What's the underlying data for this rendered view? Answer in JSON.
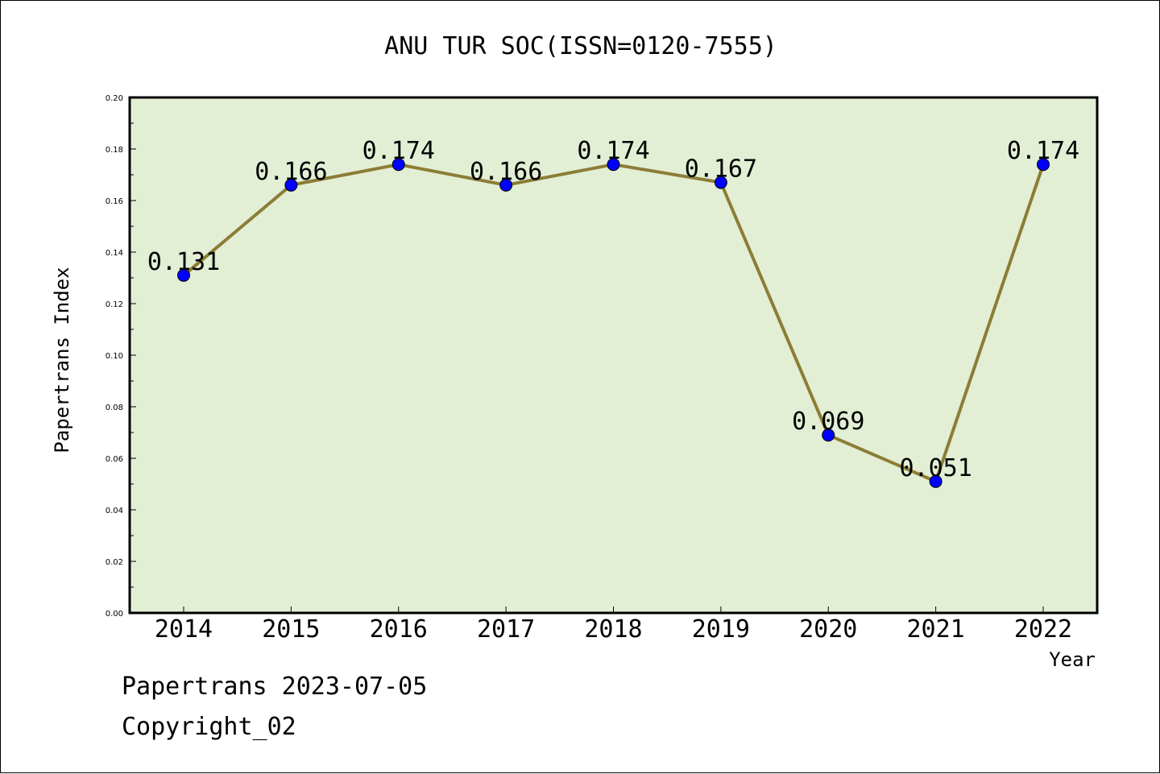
{
  "chart_data": {
    "type": "line",
    "title": "ANU TUR SOC(ISSN=0120-7555)",
    "xlabel": "Year",
    "ylabel": "Papertrans Index",
    "categories": [
      "2014",
      "2015",
      "2016",
      "2017",
      "2018",
      "2019",
      "2020",
      "2021",
      "2022"
    ],
    "values": [
      0.131,
      0.166,
      0.174,
      0.166,
      0.174,
      0.167,
      0.069,
      0.051,
      0.174
    ],
    "data_labels": [
      "0.131",
      "0.166",
      "0.174",
      "0.166",
      "0.174",
      "0.167",
      "0.069",
      "0.051",
      "0.174"
    ],
    "ylim": [
      0,
      0.2
    ],
    "yticks": [
      "0.00",
      "0.02",
      "0.04",
      "0.06",
      "0.08",
      "0.10",
      "0.12",
      "0.14",
      "0.16",
      "0.18",
      "0.20"
    ],
    "grid": false,
    "colors": {
      "plot_background": "#e2efd5",
      "line": "#8c7d36",
      "marker": "#0000ff"
    }
  },
  "footer": {
    "line1": "Papertrans 2023-07-05",
    "line2": "Copyright_02"
  }
}
